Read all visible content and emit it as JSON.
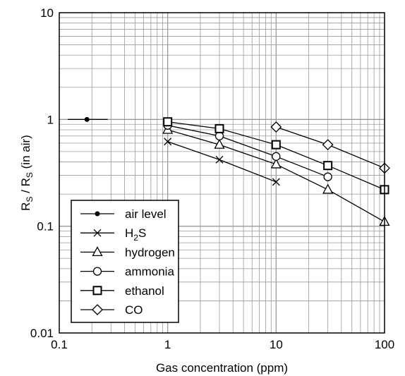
{
  "chart_data": {
    "type": "line",
    "title": "",
    "xlabel": "Gas concentration (ppm)",
    "ylabel_parts": {
      "r1": "R",
      "s1": "S",
      "mid": " / R",
      "s2": "S",
      "tail": " (in air)"
    },
    "xscale": "log",
    "yscale": "log",
    "xlim": [
      0.1,
      100
    ],
    "ylim": [
      0.01,
      10
    ],
    "grid": true,
    "legend_position": "bottom-left",
    "x_tick_labels": [
      {
        "value": 0.1,
        "label": "0.1"
      },
      {
        "value": 1,
        "label": "1"
      },
      {
        "value": 10,
        "label": "10"
      },
      {
        "value": 100,
        "label": "100"
      }
    ],
    "y_tick_labels": [
      {
        "value": 10,
        "label": "10"
      },
      {
        "value": 1,
        "label": "1"
      },
      {
        "value": 0.1,
        "label": "0.1"
      },
      {
        "value": 0.01,
        "label": "0.01"
      }
    ],
    "series": [
      {
        "name": "air level",
        "marker": "dot",
        "points": [
          [
            0.12,
            1.0
          ],
          [
            0.18,
            1.0
          ],
          [
            0.28,
            1.0
          ]
        ]
      },
      {
        "name": "H2S",
        "name_parts": [
          "H",
          "2",
          "S"
        ],
        "marker": "x",
        "points": [
          [
            1,
            0.62
          ],
          [
            3,
            0.42
          ],
          [
            10,
            0.26
          ]
        ]
      },
      {
        "name": "hydrogen",
        "marker": "triangle",
        "points": [
          [
            1,
            0.8
          ],
          [
            3,
            0.58
          ],
          [
            10,
            0.38
          ],
          [
            30,
            0.22
          ],
          [
            100,
            0.11
          ]
        ]
      },
      {
        "name": "ammonia",
        "marker": "circle",
        "points": [
          [
            1,
            0.88
          ],
          [
            3,
            0.7
          ],
          [
            10,
            0.45
          ],
          [
            30,
            0.29
          ]
        ]
      },
      {
        "name": "ethanol",
        "marker": "square",
        "points": [
          [
            1,
            0.95
          ],
          [
            3,
            0.82
          ],
          [
            10,
            0.58
          ],
          [
            30,
            0.37
          ],
          [
            100,
            0.22
          ]
        ]
      },
      {
        "name": "CO",
        "marker": "diamond",
        "points": [
          [
            10,
            0.85
          ],
          [
            30,
            0.58
          ],
          [
            100,
            0.35
          ]
        ]
      }
    ]
  }
}
